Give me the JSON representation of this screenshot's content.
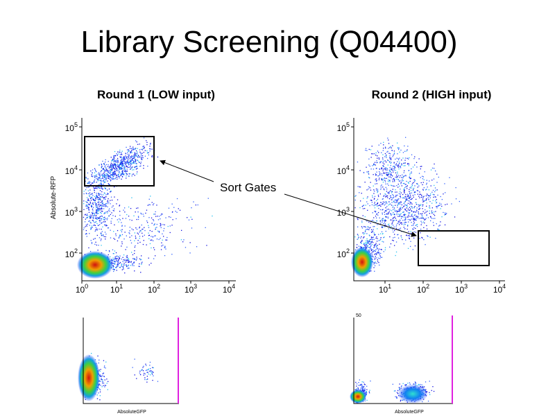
{
  "title": "Library Screening (Q04400)",
  "annotation": "Sort Gates",
  "panels": [
    {
      "heading": "Round 1 (LOW input)",
      "y_axis_label": "Absolute-RFP",
      "yticks": [
        {
          "base": "10",
          "exp": "5"
        },
        {
          "base": "10",
          "exp": "4"
        },
        {
          "base": "10",
          "exp": "3"
        },
        {
          "base": "10",
          "exp": "2"
        }
      ],
      "xticks": [
        {
          "base": "10",
          "exp": "0"
        },
        {
          "base": "10",
          "exp": "1"
        },
        {
          "base": "10",
          "exp": "2"
        },
        {
          "base": "10",
          "exp": "3"
        },
        {
          "base": "10",
          "exp": "4"
        }
      ]
    },
    {
      "heading": "Round 2 (HIGH input)",
      "yticks": [
        {
          "base": "10",
          "exp": "5"
        },
        {
          "base": "10",
          "exp": "4"
        },
        {
          "base": "10",
          "exp": "3"
        },
        {
          "base": "10",
          "exp": "2"
        }
      ],
      "xticks": [
        {
          "base": "10",
          "exp": "1"
        },
        {
          "base": "10",
          "exp": "2"
        },
        {
          "base": "10",
          "exp": "3"
        },
        {
          "base": "10",
          "exp": "4"
        }
      ]
    }
  ],
  "small_plots": [
    {
      "x_axis_label": "AbsoluteGFP"
    },
    {
      "corner_label": "50",
      "x_axis_label": "AbsoluteGFP"
    }
  ]
}
